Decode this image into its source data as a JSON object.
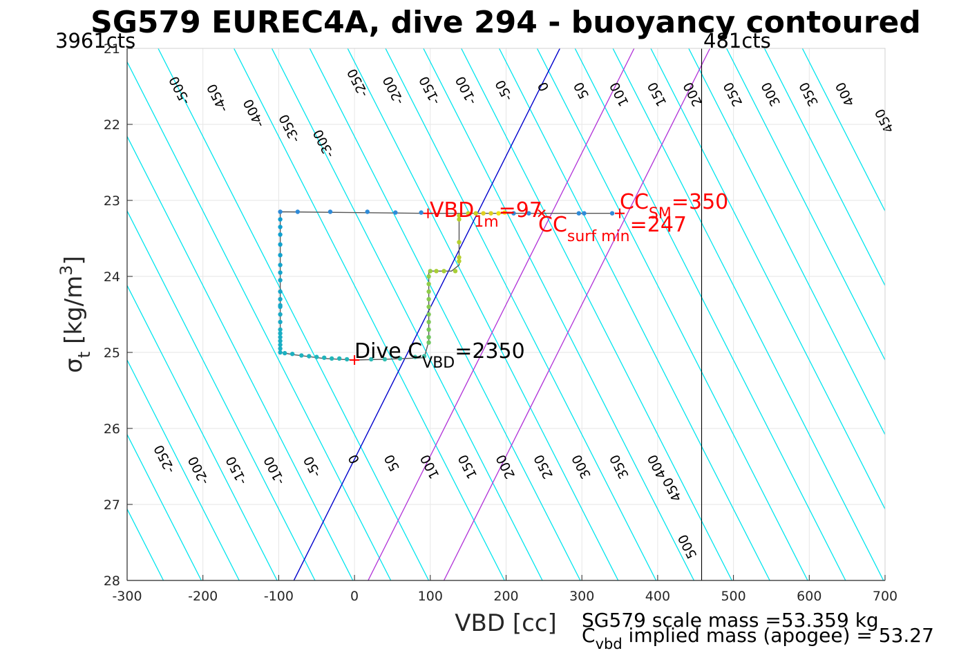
{
  "colors": {
    "contour": "#00e5ee",
    "neutral_line": "#0000cd",
    "sm_lines": "#b030d8",
    "apogee_line": "#000000",
    "track": "#555555",
    "grid": "#e6e6e6",
    "marker_red": "#ff0000"
  },
  "chart_data": {
    "type": "scatter",
    "title": "SG579 EUREC4A, dive 294 - buoyancy contoured",
    "xlabel": "VBD [cc]",
    "ylabel": {
      "sym": "σ",
      "sub": "t",
      "unit": " [kg/m",
      "sup": "3",
      "close": "]"
    },
    "xlim": [
      -300,
      700
    ],
    "ylim": [
      21,
      28
    ],
    "y_reversed": true,
    "grid": true,
    "xticks": [
      -300,
      -200,
      -100,
      0,
      100,
      200,
      300,
      400,
      500,
      600,
      700
    ],
    "yticks": [
      21,
      22,
      23,
      24,
      25,
      26,
      27,
      28
    ],
    "xtick_labels": [
      "-300",
      "-200",
      "-100",
      "0",
      "100",
      "200",
      "300",
      "400",
      "500",
      "600",
      "700"
    ],
    "ytick_labels": [
      "21",
      "22",
      "23",
      "24",
      "25",
      "26",
      "27",
      "28"
    ],
    "corner_left": "3961cts",
    "corner_right": "481cts",
    "contour_slope_cc_per_sigma": 51,
    "contour_origin": {
      "vbd": 0,
      "sigma": 25.1
    },
    "contour_levels": [
      -550,
      -500,
      -450,
      -400,
      -350,
      -300,
      -250,
      -200,
      -150,
      -100,
      -50,
      50,
      100,
      150,
      200,
      250,
      300,
      350,
      400,
      450,
      500,
      550,
      600,
      650,
      700,
      750,
      800
    ],
    "contour_labels_top": [
      {
        "text": "-500",
        "x": -230,
        "y": 21.55
      },
      {
        "text": "-450",
        "x": -180,
        "y": 21.65
      },
      {
        "text": "-400",
        "x": -132,
        "y": 21.85
      },
      {
        "text": "-350",
        "x": -85,
        "y": 22.05
      },
      {
        "text": "-300",
        "x": -40,
        "y": 22.25
      },
      {
        "text": "-250",
        "x": 5,
        "y": 21.45
      },
      {
        "text": "-200",
        "x": 52,
        "y": 21.55
      },
      {
        "text": "-150",
        "x": 100,
        "y": 21.55
      },
      {
        "text": "-100",
        "x": 148,
        "y": 21.55
      },
      {
        "text": "-50",
        "x": 198,
        "y": 21.55
      },
      {
        "text": "0",
        "x": 250,
        "y": 21.5
      },
      {
        "text": "50",
        "x": 300,
        "y": 21.55
      },
      {
        "text": "100",
        "x": 350,
        "y": 21.6
      },
      {
        "text": "150",
        "x": 400,
        "y": 21.6
      },
      {
        "text": "200",
        "x": 447,
        "y": 21.6
      },
      {
        "text": "250",
        "x": 500,
        "y": 21.6
      },
      {
        "text": "300",
        "x": 550,
        "y": 21.6
      },
      {
        "text": "350",
        "x": 600,
        "y": 21.6
      },
      {
        "text": "400",
        "x": 648,
        "y": 21.6
      },
      {
        "text": "450",
        "x": 700,
        "y": 21.95
      }
    ],
    "contour_labels_bottom": [
      {
        "text": "-250",
        "x": -250,
        "y": 26.4
      },
      {
        "text": "-200",
        "x": -205,
        "y": 26.55
      },
      {
        "text": "-150",
        "x": -155,
        "y": 26.55
      },
      {
        "text": "-100",
        "x": -105,
        "y": 26.55
      },
      {
        "text": "-50",
        "x": -55,
        "y": 26.5
      },
      {
        "text": "0",
        "x": 0,
        "y": 26.4
      },
      {
        "text": "50",
        "x": 50,
        "y": 26.45
      },
      {
        "text": "100",
        "x": 100,
        "y": 26.5
      },
      {
        "text": "150",
        "x": 150,
        "y": 26.5
      },
      {
        "text": "200",
        "x": 200,
        "y": 26.5
      },
      {
        "text": "250",
        "x": 250,
        "y": 26.5
      },
      {
        "text": "300",
        "x": 300,
        "y": 26.5
      },
      {
        "text": "350",
        "x": 350,
        "y": 26.5
      },
      {
        "text": "400",
        "x": 400,
        "y": 26.5
      },
      {
        "text": "450",
        "x": 420,
        "y": 26.8
      },
      {
        "text": "500",
        "x": 440,
        "y": 27.55
      }
    ],
    "neutral_line": {
      "x1": -80,
      "y1": 28,
      "x2": 271,
      "y2": 21
    },
    "sm_lines": [
      {
        "x1": 18,
        "y1": 28,
        "x2": 369,
        "y2": 21
      },
      {
        "x1": 118,
        "y1": 28,
        "x2": 469,
        "y2": 21
      }
    ],
    "apogee_vline_x": 458,
    "track_path": [
      [
        -98,
        23.15
      ],
      [
        90,
        23.17
      ],
      [
        340,
        23.17
      ],
      [
        138,
        23.17
      ],
      [
        138,
        23.85
      ],
      [
        128,
        23.93
      ],
      [
        98,
        23.93
      ],
      [
        98,
        24.85
      ],
      [
        92,
        25.07
      ],
      [
        40,
        25.09
      ],
      [
        0,
        25.1
      ],
      [
        -40,
        25.08
      ],
      [
        -80,
        25.03
      ],
      [
        -98,
        25.0
      ],
      [
        -98,
        23.15
      ]
    ],
    "track_points": [
      {
        "x": -98,
        "y": 23.15,
        "c": "#2f8bd8"
      },
      {
        "x": -75,
        "y": 23.15,
        "c": "#2f8bd8"
      },
      {
        "x": -32,
        "y": 23.15,
        "c": "#2f8bd8"
      },
      {
        "x": 17,
        "y": 23.15,
        "c": "#2f8bd8"
      },
      {
        "x": 54,
        "y": 23.16,
        "c": "#2f8bd8"
      },
      {
        "x": 88,
        "y": 23.16,
        "c": "#2f8bd8"
      },
      {
        "x": 210,
        "y": 23.17,
        "c": "#2f8bd8"
      },
      {
        "x": 230,
        "y": 23.17,
        "c": "#2f8bd8"
      },
      {
        "x": 296,
        "y": 23.17,
        "c": "#2f8bd8"
      },
      {
        "x": 303,
        "y": 23.17,
        "c": "#2f8bd8"
      },
      {
        "x": 340,
        "y": 23.17,
        "c": "#2f8bd8"
      },
      {
        "x": 150,
        "y": 23.17,
        "c": "#c8d020"
      },
      {
        "x": 160,
        "y": 23.17,
        "c": "#c8d020"
      },
      {
        "x": 170,
        "y": 23.17,
        "c": "#e0d020"
      },
      {
        "x": 180,
        "y": 23.17,
        "c": "#e0d020"
      },
      {
        "x": 190,
        "y": 23.17,
        "c": "#f0e010"
      },
      {
        "x": 198,
        "y": 23.16,
        "c": "#f8e000"
      },
      {
        "x": 138,
        "y": 23.2,
        "c": "#b6cf2c"
      },
      {
        "x": 138,
        "y": 23.25,
        "c": "#b6cf2c"
      },
      {
        "x": 138,
        "y": 23.55,
        "c": "#b6cf2c"
      },
      {
        "x": 138,
        "y": 23.75,
        "c": "#b6cf2c"
      },
      {
        "x": 138,
        "y": 23.8,
        "c": "#b6cf2c"
      },
      {
        "x": 133,
        "y": 23.93,
        "c": "#a8ce35"
      },
      {
        "x": 118,
        "y": 23.93,
        "c": "#a8ce35"
      },
      {
        "x": 108,
        "y": 23.93,
        "c": "#a8ce35"
      },
      {
        "x": 100,
        "y": 23.93,
        "c": "#9acd3e"
      },
      {
        "x": 98,
        "y": 24.0,
        "c": "#8fcd48"
      },
      {
        "x": 98,
        "y": 24.1,
        "c": "#8fcd48"
      },
      {
        "x": 98,
        "y": 24.2,
        "c": "#8fcd48"
      },
      {
        "x": 98,
        "y": 24.3,
        "c": "#86cb50"
      },
      {
        "x": 98,
        "y": 24.4,
        "c": "#86cb50"
      },
      {
        "x": 98,
        "y": 24.5,
        "c": "#7ec955"
      },
      {
        "x": 98,
        "y": 24.6,
        "c": "#7ec955"
      },
      {
        "x": 98,
        "y": 24.7,
        "c": "#76c85a"
      },
      {
        "x": 98,
        "y": 24.8,
        "c": "#70c760"
      },
      {
        "x": 98,
        "y": 24.87,
        "c": "#70c760"
      },
      {
        "x": 92,
        "y": 25.05,
        "c": "#3ebfa8"
      },
      {
        "x": 80,
        "y": 25.06,
        "c": "#3ebfa8"
      },
      {
        "x": 60,
        "y": 25.08,
        "c": "#30beb0"
      },
      {
        "x": 40,
        "y": 25.09,
        "c": "#30beb0"
      },
      {
        "x": 22,
        "y": 25.09,
        "c": "#2ab8b4"
      },
      {
        "x": -10,
        "y": 25.09,
        "c": "#22b5b8"
      },
      {
        "x": -20,
        "y": 25.08,
        "c": "#22b5b8"
      },
      {
        "x": -30,
        "y": 25.08,
        "c": "#22b5b8"
      },
      {
        "x": -40,
        "y": 25.07,
        "c": "#20b4bb"
      },
      {
        "x": -50,
        "y": 25.06,
        "c": "#20b4bb"
      },
      {
        "x": -60,
        "y": 25.05,
        "c": "#1eb2be"
      },
      {
        "x": -70,
        "y": 25.04,
        "c": "#1eb2be"
      },
      {
        "x": -82,
        "y": 25.02,
        "c": "#1cb0c0"
      },
      {
        "x": -92,
        "y": 25.01,
        "c": "#1cb0c0"
      },
      {
        "x": -98,
        "y": 25.0,
        "c": "#1aaec4"
      },
      {
        "x": -98,
        "y": 24.95,
        "c": "#1aaec4"
      },
      {
        "x": -98,
        "y": 24.9,
        "c": "#1aaec4"
      },
      {
        "x": -98,
        "y": 24.85,
        "c": "#1aaec4"
      },
      {
        "x": -98,
        "y": 24.8,
        "c": "#1aaec4"
      },
      {
        "x": -98,
        "y": 24.75,
        "c": "#1aaec4"
      },
      {
        "x": -98,
        "y": 24.7,
        "c": "#1aaec4"
      },
      {
        "x": -98,
        "y": 24.6,
        "c": "#18aac6"
      },
      {
        "x": -98,
        "y": 24.5,
        "c": "#18aac6"
      },
      {
        "x": -98,
        "y": 24.4,
        "c": "#16a8c8"
      },
      {
        "x": -98,
        "y": 24.38,
        "c": "#16a8c8"
      },
      {
        "x": -98,
        "y": 24.3,
        "c": "#16a8c8"
      },
      {
        "x": -98,
        "y": 24.2,
        "c": "#14a6ca"
      },
      {
        "x": -98,
        "y": 24.05,
        "c": "#14a6ca"
      },
      {
        "x": -98,
        "y": 23.95,
        "c": "#12a4cc"
      },
      {
        "x": -98,
        "y": 23.85,
        "c": "#12a4cc"
      },
      {
        "x": -98,
        "y": 23.72,
        "c": "#10a2ce"
      },
      {
        "x": -98,
        "y": 23.58,
        "c": "#10a2ce"
      },
      {
        "x": -98,
        "y": 23.45,
        "c": "#0ea0d0"
      },
      {
        "x": -98,
        "y": 23.35,
        "c": "#0ea0d0"
      },
      {
        "x": -98,
        "y": 23.25,
        "c": "#0c9ed2"
      }
    ],
    "plus_markers": [
      {
        "x": 97,
        "y": 23.17
      },
      {
        "x": 350,
        "y": 23.17
      },
      {
        "x": 0,
        "y": 25.1
      }
    ],
    "x_marker": {
      "x": 247,
      "y": 23.17
    },
    "annotations": {
      "vbd1m": {
        "main": "VBD",
        "sub": "1m",
        "rest": "=97"
      },
      "ccsm": {
        "main": "CC",
        "sub": "SM",
        "rest": "=350"
      },
      "ccsurf": {
        "main": "CC",
        "sub": "surf min",
        "rest": "=247"
      },
      "divec": {
        "main": "Dive C",
        "sub": "VBD",
        "rest": "=2350"
      }
    },
    "footer": {
      "line1": "SG579 scale mass =53.359 kg",
      "line2_main": "C",
      "line2_sub": "vbd",
      "line2_rest": " implied mass (apogee) = 53.27"
    }
  }
}
